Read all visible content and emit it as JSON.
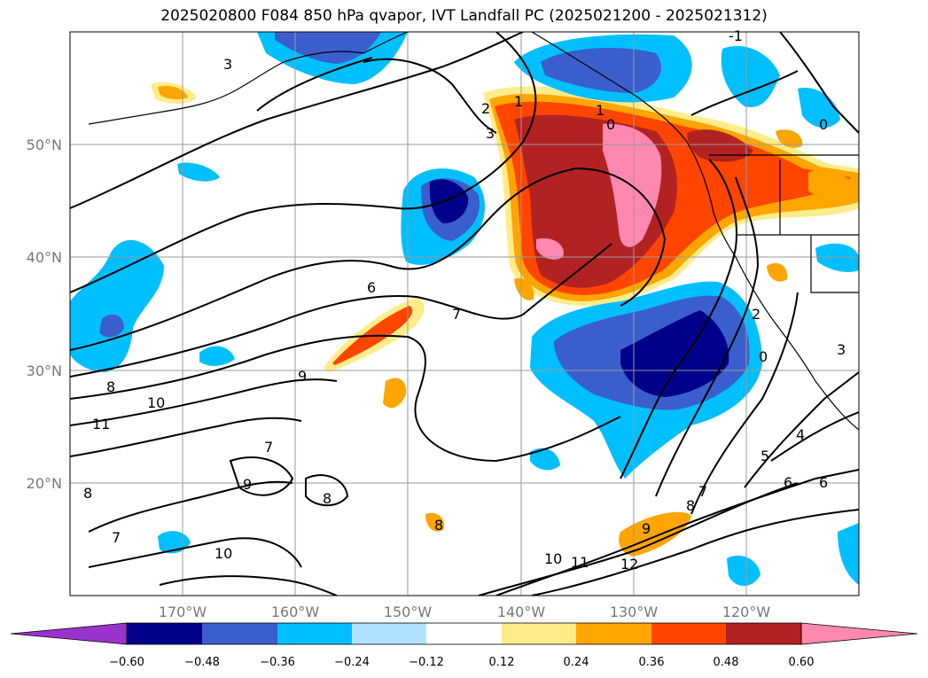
{
  "title": "2025020800 F084 850 hPa qvapor, IVT Landfall PC (2025021200 - 2025021312)",
  "map": {
    "lat_labels": [
      "50°N",
      "40°N",
      "30°N",
      "20°N"
    ],
    "lon_labels": [
      "170°W",
      "160°W",
      "150°W",
      "140°W",
      "130°W",
      "120°W"
    ],
    "lat_range": [
      10,
      60
    ],
    "lon_range": [
      -180,
      -110
    ],
    "grid": true,
    "contour_labels": [
      "3",
      "1",
      "2",
      "3",
      "0",
      "0",
      "1",
      "-1",
      "6",
      "7",
      "8",
      "9",
      "10",
      "11",
      "7",
      "9",
      "8",
      "8",
      "7",
      "10",
      "9",
      "8",
      "7",
      "10",
      "11",
      "12",
      "2",
      "0",
      "4",
      "5",
      "6",
      "6",
      "8",
      "3"
    ]
  },
  "colorbar": {
    "ticks": [
      "−0.60",
      "−0.48",
      "−0.36",
      "−0.24",
      "−0.12",
      "0.12",
      "0.24",
      "0.36",
      "0.48",
      "0.60"
    ],
    "colors": [
      "#9933cc",
      "#00008b",
      "#3a5fcd",
      "#00bfff",
      "#b0e2ff",
      "#ffffff",
      "#ffec8b",
      "#ffa500",
      "#ff4500",
      "#b22222",
      "#ff88b0"
    ],
    "extend": "both"
  },
  "chart_data": {
    "type": "heatmap",
    "title": "2025020800 F084 850 hPa qvapor, IVT Landfall PC (2025021200 - 2025021312)",
    "x_axis": "longitude",
    "y_axis": "latitude",
    "xlim": [
      -180,
      -110
    ],
    "ylim": [
      10,
      60
    ],
    "levels": [
      -0.6,
      -0.48,
      -0.36,
      -0.24,
      -0.12,
      0.12,
      0.24,
      0.36,
      0.48,
      0.6
    ],
    "grid": true
  }
}
